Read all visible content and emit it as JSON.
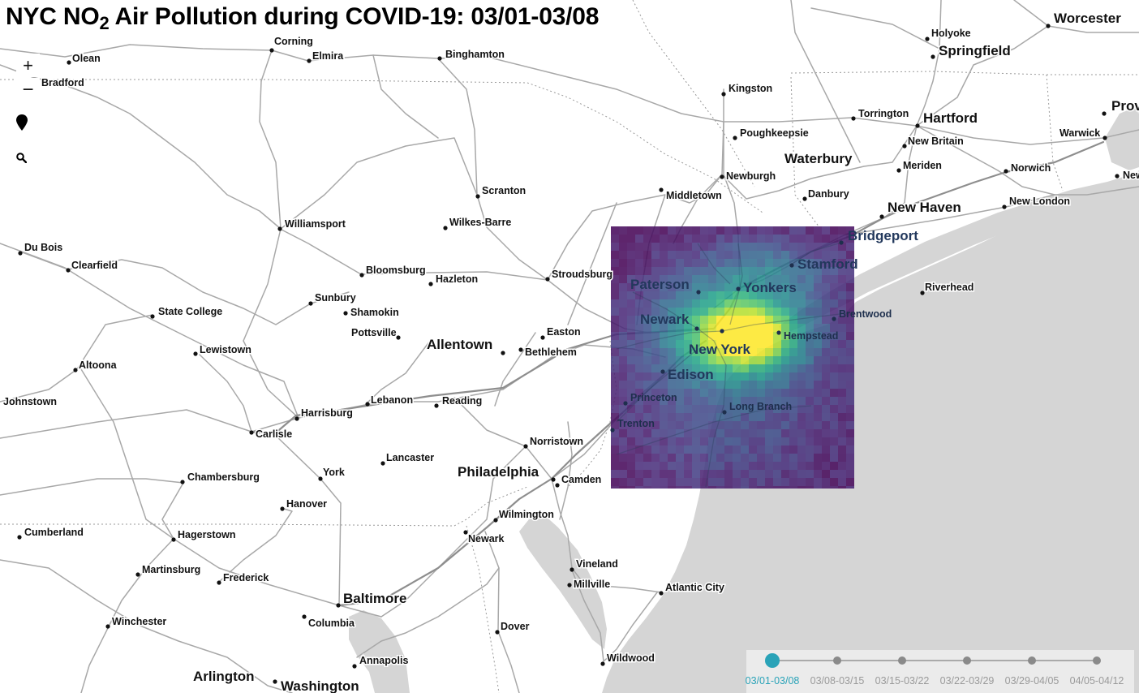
{
  "title": {
    "prefix": "NYC NO",
    "subscript": "2",
    "suffix": " Air Pollution during COVID-19: 03/01-03/08"
  },
  "controls": {
    "zoom_in": "+",
    "zoom_out": "−"
  },
  "timeline": {
    "active_index": 0,
    "weeks": [
      "03/01-03/08",
      "03/08-03/15",
      "03/15-03/22",
      "03/22-03/29",
      "03/29-04/05",
      "04/05-04/12"
    ]
  },
  "overlay": {
    "colormap": "viridis",
    "low_color": "#440154",
    "high_color": "#fde725"
  },
  "colors": {
    "accent": "#2aa3b8",
    "water": "#d5d5d5",
    "land": "#ffffff",
    "roads": "#a8a8a8"
  },
  "cities": [
    {
      "name": "Olean",
      "major": false
    },
    {
      "name": "Bradford",
      "major": false
    },
    {
      "name": "Corning",
      "major": false
    },
    {
      "name": "Elmira",
      "major": false
    },
    {
      "name": "Binghamton",
      "major": false
    },
    {
      "name": "Kingston",
      "major": false
    },
    {
      "name": "Holyoke",
      "major": false
    },
    {
      "name": "Springfield",
      "major": true
    },
    {
      "name": "Worcester",
      "major": true
    },
    {
      "name": "Hartford",
      "major": true
    },
    {
      "name": "Torrington",
      "major": false
    },
    {
      "name": "New Britain",
      "major": false
    },
    {
      "name": "Poughkeepsie",
      "major": false
    },
    {
      "name": "Waterbury",
      "major": true
    },
    {
      "name": "Meriden",
      "major": false
    },
    {
      "name": "Warwick",
      "major": false
    },
    {
      "name": "Norwich",
      "major": false
    },
    {
      "name": "Newburgh",
      "major": false
    },
    {
      "name": "Middletown",
      "major": false
    },
    {
      "name": "Danbury",
      "major": false
    },
    {
      "name": "New Haven",
      "major": true
    },
    {
      "name": "New London",
      "major": false
    },
    {
      "name": "Bridgeport",
      "major": true
    },
    {
      "name": "Stamford",
      "major": true
    },
    {
      "name": "Riverhead",
      "major": false
    },
    {
      "name": "Scranton",
      "major": false
    },
    {
      "name": "Williamsport",
      "major": false
    },
    {
      "name": "Wilkes-Barre",
      "major": false
    },
    {
      "name": "Du Bois",
      "major": false
    },
    {
      "name": "Clearfield",
      "major": false
    },
    {
      "name": "Bloomsburg",
      "major": false
    },
    {
      "name": "Hazleton",
      "major": false
    },
    {
      "name": "Stroudsburg",
      "major": false
    },
    {
      "name": "Paterson",
      "major": true
    },
    {
      "name": "Yonkers",
      "major": true
    },
    {
      "name": "Sunbury",
      "major": false
    },
    {
      "name": "Shamokin",
      "major": false
    },
    {
      "name": "State College",
      "major": false
    },
    {
      "name": "Brentwood",
      "major": false
    },
    {
      "name": "Newark",
      "major": true
    },
    {
      "name": "Pottsville",
      "major": false
    },
    {
      "name": "Easton",
      "major": false
    },
    {
      "name": "Hempstead",
      "major": false
    },
    {
      "name": "Allentown",
      "major": true
    },
    {
      "name": "Bethlehem",
      "major": false
    },
    {
      "name": "New York",
      "major": true
    },
    {
      "name": "Lewistown",
      "major": false
    },
    {
      "name": "Altoona",
      "major": false
    },
    {
      "name": "Edison",
      "major": true
    },
    {
      "name": "Johnstown",
      "major": false
    },
    {
      "name": "Lebanon",
      "major": false
    },
    {
      "name": "Reading",
      "major": false
    },
    {
      "name": "Princeton",
      "major": false
    },
    {
      "name": "Long Branch",
      "major": false
    },
    {
      "name": "Harrisburg",
      "major": false
    },
    {
      "name": "Trenton",
      "major": false
    },
    {
      "name": "Carlisle",
      "major": false
    },
    {
      "name": "Norristown",
      "major": false
    },
    {
      "name": "Lancaster",
      "major": false
    },
    {
      "name": "Philadelphia",
      "major": true
    },
    {
      "name": "York",
      "major": false
    },
    {
      "name": "Chambersburg",
      "major": false
    },
    {
      "name": "Camden",
      "major": false
    },
    {
      "name": "Hanover",
      "major": false
    },
    {
      "name": "Wilmington",
      "major": false
    },
    {
      "name": "Cumberland",
      "major": false
    },
    {
      "name": "Hagerstown",
      "major": false
    },
    {
      "name": "Newark",
      "major": false
    },
    {
      "name": "Vineland",
      "major": false
    },
    {
      "name": "Martinsburg",
      "major": false
    },
    {
      "name": "Frederick",
      "major": false
    },
    {
      "name": "Millville",
      "major": false
    },
    {
      "name": "Atlantic City",
      "major": false
    },
    {
      "name": "Baltimore",
      "major": true
    },
    {
      "name": "Winchester",
      "major": false
    },
    {
      "name": "Columbia",
      "major": false
    },
    {
      "name": "Dover",
      "major": false
    },
    {
      "name": "Wildwood",
      "major": false
    },
    {
      "name": "Annapolis",
      "major": false
    },
    {
      "name": "Arlington",
      "major": true
    },
    {
      "name": "Washington",
      "major": true
    },
    {
      "name": "Prov",
      "major": true
    },
    {
      "name": "New",
      "major": false
    }
  ]
}
